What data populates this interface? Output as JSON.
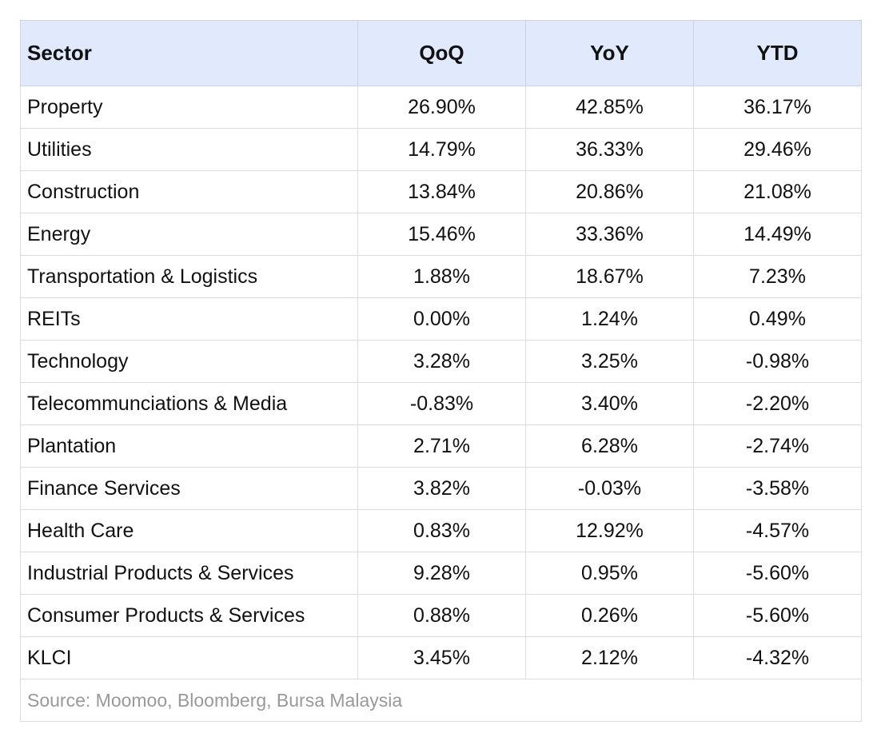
{
  "table": {
    "header": [
      "Sector",
      "QoQ",
      "YoY",
      "YTD"
    ],
    "rows": [
      [
        "Property",
        "26.90%",
        "42.85%",
        "36.17%"
      ],
      [
        "Utilities",
        "14.79%",
        "36.33%",
        "29.46%"
      ],
      [
        "Construction",
        "13.84%",
        "20.86%",
        "21.08%"
      ],
      [
        "Energy",
        "15.46%",
        "33.36%",
        "14.49%"
      ],
      [
        "Transportation & Logistics",
        "1.88%",
        "18.67%",
        "7.23%"
      ],
      [
        "REITs",
        "0.00%",
        "1.24%",
        "0.49%"
      ],
      [
        "Technology",
        "3.28%",
        "3.25%",
        "-0.98%"
      ],
      [
        "Telecommunciations & Media",
        "-0.83%",
        "3.40%",
        "-2.20%"
      ],
      [
        "Plantation",
        "2.71%",
        "6.28%",
        "-2.74%"
      ],
      [
        "Finance Services",
        "3.82%",
        "-0.03%",
        "-3.58%"
      ],
      [
        "Health Care",
        "0.83%",
        "12.92%",
        "-4.57%"
      ],
      [
        "Industrial Products & Services",
        "9.28%",
        "0.95%",
        "-5.60%"
      ],
      [
        "Consumer Products & Services",
        "0.88%",
        "0.26%",
        "-5.60%"
      ],
      [
        "KLCI",
        "3.45%",
        "2.12%",
        "-4.32%"
      ]
    ],
    "source": "Source: Moomoo, Bloomberg, Bursa Malaysia"
  }
}
